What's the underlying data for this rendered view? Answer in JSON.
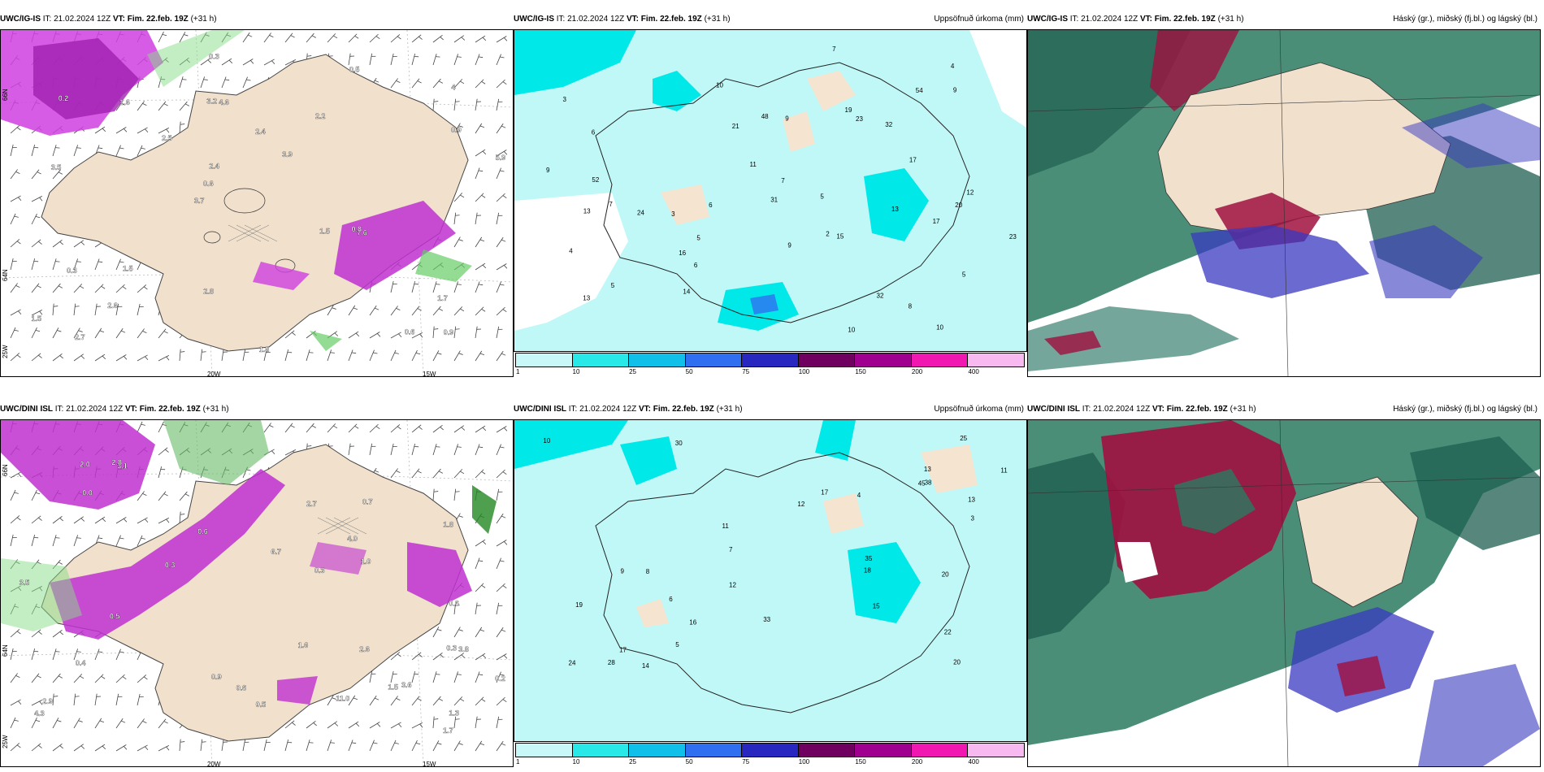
{
  "panels": [
    {
      "id": "p1",
      "model": "UWC/IG-IS",
      "it_label": "IT:",
      "it": "21.02.2024 12Z",
      "vt_label": "VT:",
      "vt": "Fim. 22.feb. 19Z",
      "lead": "(+31 h)",
      "right_title": "",
      "labels": [
        "0.9",
        "3.5",
        "4",
        "3.7",
        "2.2",
        "2.7",
        "3.2",
        "2.4",
        "0.3",
        "2.5",
        "1.5",
        "2.6",
        "4.6",
        "3.9",
        "7.6",
        "0.2",
        "0.3",
        "5.9",
        "1.5",
        "0.9",
        "0.6",
        "2.8",
        "2.4",
        "1.6",
        "0.5",
        "1.5",
        "0.6",
        "1.7",
        "0.8",
        "1.8"
      ],
      "lon_labels": [
        "20W",
        "15W"
      ],
      "lat_labels": [
        "66N",
        "64N",
        "25W"
      ]
    },
    {
      "id": "p2",
      "model": "UWC/IG-IS",
      "it_label": "IT:",
      "it": "21.02.2024 12Z",
      "vt_label": "VT:",
      "vt": "Fim. 22.feb. 19Z",
      "lead": "(+31 h)",
      "right_title": "Uppsöfnuð úrkoma (mm)",
      "labels": [
        "10",
        "7",
        "2",
        "3",
        "5",
        "6",
        "5",
        "3",
        "32",
        "48",
        "23",
        "8",
        "6",
        "10",
        "5",
        "4",
        "13",
        "7",
        "9",
        "13",
        "4",
        "9",
        "17",
        "23",
        "12",
        "52",
        "24",
        "31",
        "11",
        "9",
        "15",
        "13",
        "16",
        "19",
        "21",
        "17",
        "20",
        "32",
        "54",
        "10",
        "5",
        "9",
        "14",
        "7",
        "6"
      ]
    },
    {
      "id": "p3",
      "model": "UWC/IG-IS",
      "it_label": "IT:",
      "it": "21.02.2024 12Z",
      "vt_label": "VT:",
      "vt": "Fim. 22.feb. 19Z",
      "lead": "(+31 h)",
      "right_title": "Háský (gr.), miðský (fj.bl.) og lágský (bl.)"
    },
    {
      "id": "p4",
      "model": "UWC/DINI ISL",
      "it_label": "IT:",
      "it": "21.02.2024 12Z",
      "vt_label": "VT:",
      "vt": "Fim. 22.feb. 19Z",
      "lead": "(+31 h)",
      "right_title": "",
      "labels": [
        "0.4",
        "0.3",
        "0.3",
        "0.2",
        "2.7",
        "3.6",
        "6.7",
        "4.0",
        "3.8",
        "2.9",
        "3.1",
        "1.6",
        "0.6",
        "0.5",
        "2.0",
        "0.9",
        "1.7",
        "1.8",
        "1.3",
        "2.6",
        "0.5",
        "0.7",
        "0.3",
        "0.6",
        "2.8",
        "3.5",
        "1.5",
        "11.0",
        "0.0",
        "1.0",
        "0.6",
        "4.3"
      ],
      "lon_labels": [
        "20W",
        "15W"
      ],
      "lat_labels": [
        "66N",
        "64N",
        "25W"
      ]
    },
    {
      "id": "p5",
      "model": "UWC/DINI ISL",
      "it_label": "IT:",
      "it": "21.02.2024 12Z",
      "vt_label": "VT:",
      "vt": "Fim. 22.feb. 19Z",
      "lead": "(+31 h)",
      "right_title": "Uppsöfnuð úrkoma (mm)",
      "labels": [
        "24",
        "15",
        "17",
        "18",
        "20",
        "45",
        "30",
        "33",
        "12",
        "14",
        "20",
        "17",
        "13",
        "16",
        "10",
        "11",
        "8",
        "7",
        "5",
        "3",
        "4",
        "22",
        "35",
        "28",
        "12",
        "13",
        "9",
        "6",
        "25",
        "19",
        "38",
        "11"
      ]
    },
    {
      "id": "p6",
      "model": "UWC/DINI ISL",
      "it_label": "IT:",
      "it": "21.02.2024 12Z",
      "vt_label": "VT:",
      "vt": "Fim. 22.feb. 19Z",
      "lead": "(+31 h)",
      "right_title": "Háský (gr.), miðský (fj.bl.) og lágský (bl.)"
    }
  ],
  "colorbar": {
    "labels": [
      "1",
      "10",
      "25",
      "50",
      "75",
      "100",
      "150",
      "200",
      "400"
    ],
    "colors": [
      "#c8f8f8",
      "#28e8e8",
      "#10c0e8",
      "#3070f0",
      "#2828c0",
      "#700060",
      "#a00090",
      "#f018b0",
      "#f8b8f0"
    ]
  },
  "colors": {
    "land": "#f0e0cc",
    "sea_precip": "#c0f8f8",
    "precip_mid": "#00e0e8",
    "cloud_high": "#2a7a60",
    "cloud_mid": "#3838c0",
    "cloud_low": "#a01040",
    "pink_precip": "#e040e0"
  }
}
